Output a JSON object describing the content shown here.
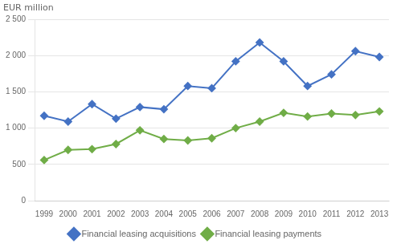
{
  "chart_data": {
    "type": "line",
    "ylabel": "EUR million",
    "x": [
      1999,
      2000,
      2001,
      2002,
      2003,
      2004,
      2005,
      2006,
      2007,
      2008,
      2009,
      2010,
      2011,
      2012,
      2013
    ],
    "series": [
      {
        "name": "Financial leasing acquisitions",
        "color": "#4472C4",
        "marker": "diamond",
        "values": [
          1170,
          1090,
          1330,
          1130,
          1290,
          1260,
          1580,
          1550,
          1920,
          2180,
          1920,
          1580,
          1740,
          2060,
          1980
        ]
      },
      {
        "name": "Financial leasing payments",
        "color": "#70AD47",
        "marker": "diamond",
        "values": [
          560,
          700,
          710,
          780,
          970,
          850,
          830,
          860,
          1000,
          1090,
          1210,
          1160,
          1200,
          1180,
          1230
        ]
      }
    ],
    "xlim": [
      1998.6,
      2013.4
    ],
    "xticks": [
      1999,
      2000,
      2001,
      2002,
      2003,
      2004,
      2005,
      2006,
      2007,
      2008,
      2009,
      2010,
      2011,
      2012,
      2013
    ],
    "ylim": [
      0,
      2500
    ],
    "yticks": [
      0,
      500,
      {
        "value": 1000,
        "label": "1 000"
      },
      {
        "value": 1500,
        "label": "1 500"
      },
      {
        "value": 2000,
        "label": "2 000"
      },
      {
        "value": 2500,
        "label": "2 500"
      }
    ],
    "grid": "y",
    "legend": "bottom"
  }
}
